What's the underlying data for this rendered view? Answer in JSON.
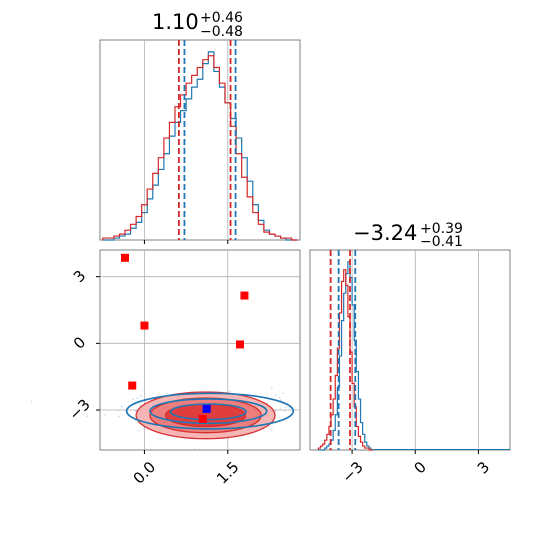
{
  "chart_data": {
    "type": "corner",
    "grid": true,
    "colors": {
      "blue": "#1f77b4",
      "red": "#d62728",
      "marker_red": "#ff0000",
      "marker_blue": "#0000ff",
      "grid": "#b0b0b0",
      "axes": "#808080"
    },
    "param1": {
      "title_main": "1.10",
      "title_sup": "+0.46",
      "title_sub": "−0.48",
      "xlim": [
        -0.8,
        2.8
      ],
      "xticks": [
        0.0,
        1.5
      ],
      "xtick_labels": [
        "0.0",
        "1.5"
      ],
      "quantile_lines": {
        "blue": [
          0.72,
          1.64
        ],
        "red": [
          0.62,
          1.55
        ]
      },
      "hist_x": [
        -0.7,
        -0.6,
        -0.5,
        -0.4,
        -0.3,
        -0.2,
        -0.1,
        0.0,
        0.1,
        0.2,
        0.3,
        0.4,
        0.5,
        0.6,
        0.7,
        0.8,
        0.9,
        1.0,
        1.1,
        1.2,
        1.3,
        1.4,
        1.5,
        1.6,
        1.7,
        1.8,
        1.9,
        2.0,
        2.1,
        2.2,
        2.3,
        2.4,
        2.5,
        2.6,
        2.7
      ],
      "hist_blue": [
        0.0,
        0.0,
        0.01,
        0.02,
        0.03,
        0.06,
        0.09,
        0.14,
        0.21,
        0.28,
        0.36,
        0.44,
        0.53,
        0.6,
        0.66,
        0.72,
        0.78,
        0.82,
        0.9,
        0.96,
        0.86,
        0.78,
        0.7,
        0.62,
        0.52,
        0.42,
        0.3,
        0.18,
        0.1,
        0.05,
        0.03,
        0.02,
        0.01,
        0.0,
        0.0
      ],
      "hist_red": [
        0.01,
        0.01,
        0.02,
        0.03,
        0.05,
        0.08,
        0.12,
        0.18,
        0.26,
        0.34,
        0.42,
        0.52,
        0.6,
        0.68,
        0.74,
        0.8,
        0.84,
        0.88,
        0.92,
        0.94,
        0.88,
        0.8,
        0.7,
        0.58,
        0.44,
        0.32,
        0.22,
        0.14,
        0.08,
        0.04,
        0.03,
        0.02,
        0.01,
        0.01,
        0.0
      ]
    },
    "param2": {
      "title_main": "−3.24",
      "title_sup": "+0.39",
      "title_sub": "−0.41",
      "xlim": [
        -5.0,
        4.5
      ],
      "xticks": [
        -3,
        0,
        3
      ],
      "xtick_labels": [
        "−3",
        "0",
        "3"
      ],
      "quantile_lines": {
        "blue": [
          -3.64,
          -2.85
        ],
        "red": [
          -4.02,
          -3.1
        ]
      },
      "hist_x": [
        -4.55,
        -4.45,
        -4.35,
        -4.25,
        -4.15,
        -4.05,
        -3.95,
        -3.85,
        -3.75,
        -3.65,
        -3.55,
        -3.45,
        -3.35,
        -3.25,
        -3.15,
        -3.05,
        -2.95,
        -2.85,
        -2.75,
        -2.65,
        -2.55,
        -2.45,
        -2.35,
        -2.25,
        -2.15,
        -2.05
      ],
      "hist_blue": [
        0.0,
        0.0,
        0.0,
        0.01,
        0.02,
        0.03,
        0.05,
        0.1,
        0.18,
        0.32,
        0.48,
        0.66,
        0.8,
        0.9,
        0.96,
        0.88,
        0.74,
        0.56,
        0.4,
        0.26,
        0.14,
        0.08,
        0.04,
        0.02,
        0.01,
        0.0
      ],
      "hist_red": [
        0.01,
        0.02,
        0.03,
        0.05,
        0.08,
        0.12,
        0.18,
        0.26,
        0.38,
        0.52,
        0.7,
        0.86,
        0.92,
        0.84,
        0.68,
        0.5,
        0.34,
        0.22,
        0.12,
        0.07,
        0.04,
        0.02,
        0.01,
        0.01,
        0.0,
        0.0
      ]
    },
    "scatter2d": {
      "xlim": [
        -0.8,
        2.8
      ],
      "ylim": [
        -4.8,
        4.2
      ],
      "yticks": [
        -3,
        0,
        3
      ],
      "ytick_labels": [
        "−3",
        "0",
        "3"
      ],
      "reference_points": [
        {
          "x": -0.35,
          "y": 3.85
        },
        {
          "x": 1.8,
          "y": 2.15
        },
        {
          "x": 0.0,
          "y": 0.8
        },
        {
          "x": 1.72,
          "y": -0.05
        },
        {
          "x": -0.22,
          "y": -1.9
        },
        {
          "x": 1.05,
          "y": -3.4
        }
      ],
      "best_fit_point": {
        "x": 1.12,
        "y": -2.95
      },
      "contours_red": [
        {
          "cx": 1.1,
          "cy": -3.24,
          "rx": 1.25,
          "ry": 1.05
        },
        {
          "cx": 1.1,
          "cy": -3.24,
          "rx": 1.0,
          "ry": 0.78
        },
        {
          "cx": 1.1,
          "cy": -3.24,
          "rx": 0.72,
          "ry": 0.5
        }
      ],
      "contours_blue": [
        {
          "cx": 1.18,
          "cy": -3.05,
          "rx": 1.5,
          "ry": 0.8
        },
        {
          "cx": 1.15,
          "cy": -3.05,
          "rx": 1.05,
          "ry": 0.55
        },
        {
          "cx": 1.15,
          "cy": -3.08,
          "rx": 0.68,
          "ry": 0.35
        }
      ]
    }
  }
}
